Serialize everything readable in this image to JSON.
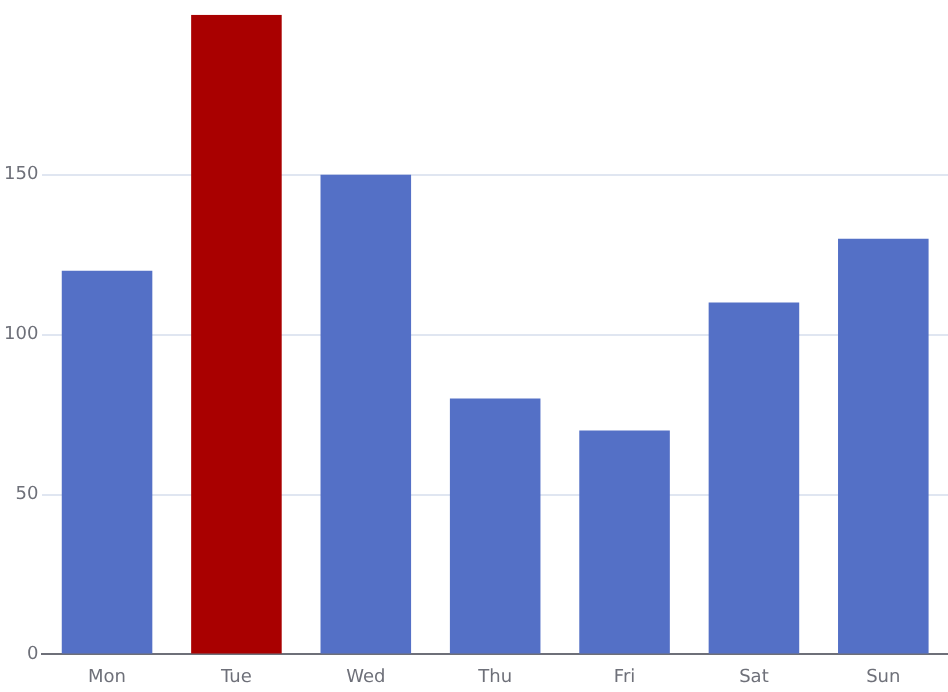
{
  "chart_data": {
    "type": "bar",
    "categories": [
      "Mon",
      "Tue",
      "Wed",
      "Thu",
      "Fri",
      "Sat",
      "Sun"
    ],
    "values": [
      120,
      200,
      150,
      80,
      70,
      110,
      130
    ],
    "colors": [
      "#5470c6",
      "#a90000",
      "#5470c6",
      "#5470c6",
      "#5470c6",
      "#5470c6",
      "#5470c6"
    ],
    "ylim": [
      0,
      200
    ],
    "yticks": [
      0,
      50,
      100,
      150
    ],
    "grid": "y",
    "legend": false
  }
}
